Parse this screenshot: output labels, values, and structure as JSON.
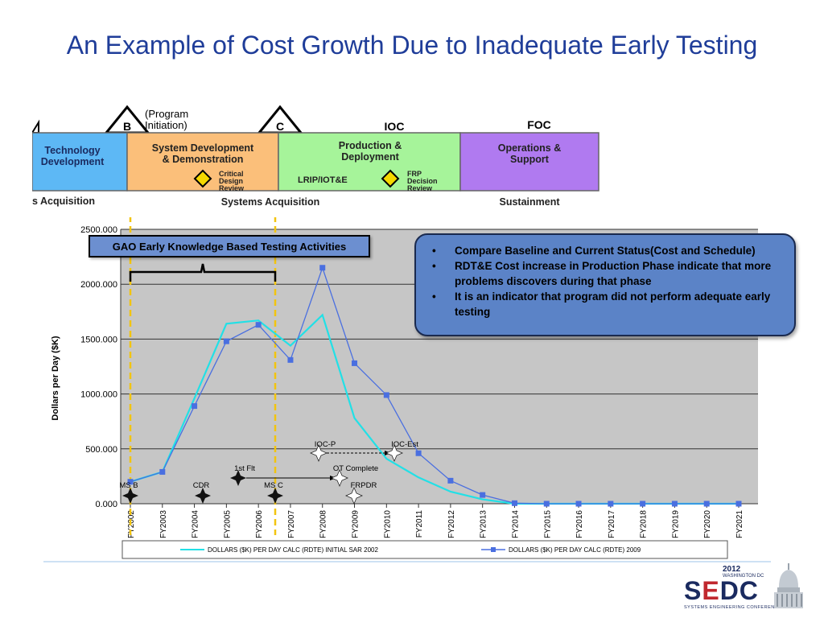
{
  "title": "An Example of Cost Growth Due to Inadequate Early Testing",
  "acquisition": {
    "milestone_b": "B",
    "milestone_b_note": "(Program Initiation)",
    "milestone_c": "C",
    "ioc": "IOC",
    "foc": "FOC",
    "phases": {
      "tech": "Technology Development",
      "sdd": "System Development & Demonstration",
      "critical_design": "Critical Design Review",
      "prod": "Production & Deployment",
      "lrip": "LRIP/IOT&E",
      "frp": "FRP Decision Review",
      "ops": "Operations & Support"
    },
    "bottom": {
      "pre": "s Acquisition",
      "systems": "Systems Acquisition",
      "sustain": "Sustainment"
    },
    "colors": {
      "tech": "#5db8f5",
      "sdd": "#fbbf7a",
      "prod": "#a6f49a",
      "ops": "#b07af0",
      "diamond": "#f5d800"
    }
  },
  "gao_label": "GAO Early Knowledge Based Testing Activities",
  "callout": {
    "main": "Compare Baseline and Current Status(Cost and Schedule)",
    "sub1": "RDT&E Cost increase  in Production Phase indicate that more problems discovers during that phase",
    "sub2": "It is an indicator that program did not perform adequate early testing"
  },
  "logo": {
    "year": "2012",
    "city": "WASHINGTON DC",
    "main": "SEDC",
    "sub": "SYSTEMS ENGINEERING CONFERENCE"
  },
  "chart_data": {
    "type": "line",
    "ylabel": "Dollars per Day ($K)",
    "ylim": [
      0,
      2500
    ],
    "yticks": [
      "0.000",
      "500.000",
      "1000.000",
      "1500.000",
      "2000.000",
      "2500.000"
    ],
    "categories": [
      "FY2002",
      "FY2003",
      "FY2004",
      "FY2005",
      "FY2006",
      "FY2007",
      "FY2008",
      "FY2009",
      "FY2010",
      "FY2011",
      "FY2012",
      "FY2013",
      "FY2014",
      "FY2015",
      "FY2016",
      "FY2017",
      "FY2018",
      "FY2019",
      "FY2020",
      "FY2021"
    ],
    "series": [
      {
        "name": "DOLLARS ($K) PER DAY CALC (RDTE) INITIAL SAR 2002",
        "color": "#22e0e6",
        "marker": false,
        "values": [
          200,
          290,
          960,
          1640,
          1670,
          1440,
          1720,
          780,
          410,
          240,
          110,
          40,
          0,
          0,
          0,
          0,
          0,
          0,
          0,
          0
        ]
      },
      {
        "name": "DOLLARS ($K) PER DAY CALC (RDTE) 2009",
        "color": "#4a6fe0",
        "marker": true,
        "values": [
          200,
          290,
          890,
          1480,
          1630,
          1310,
          2150,
          1280,
          990,
          460,
          210,
          80,
          5,
          0,
          0,
          0,
          0,
          0,
          0,
          0
        ]
      }
    ],
    "events": {
      "msb": "MS B",
      "cdr": "CDR",
      "first_flt": "1st Flt",
      "msc": "MS C",
      "ot_complete": "OT Complete",
      "frpdr": "FRPDR",
      "ioc_p": "IOC-P",
      "ioc_est": "IOC-Est"
    },
    "grid": true,
    "legend": "bottom"
  }
}
